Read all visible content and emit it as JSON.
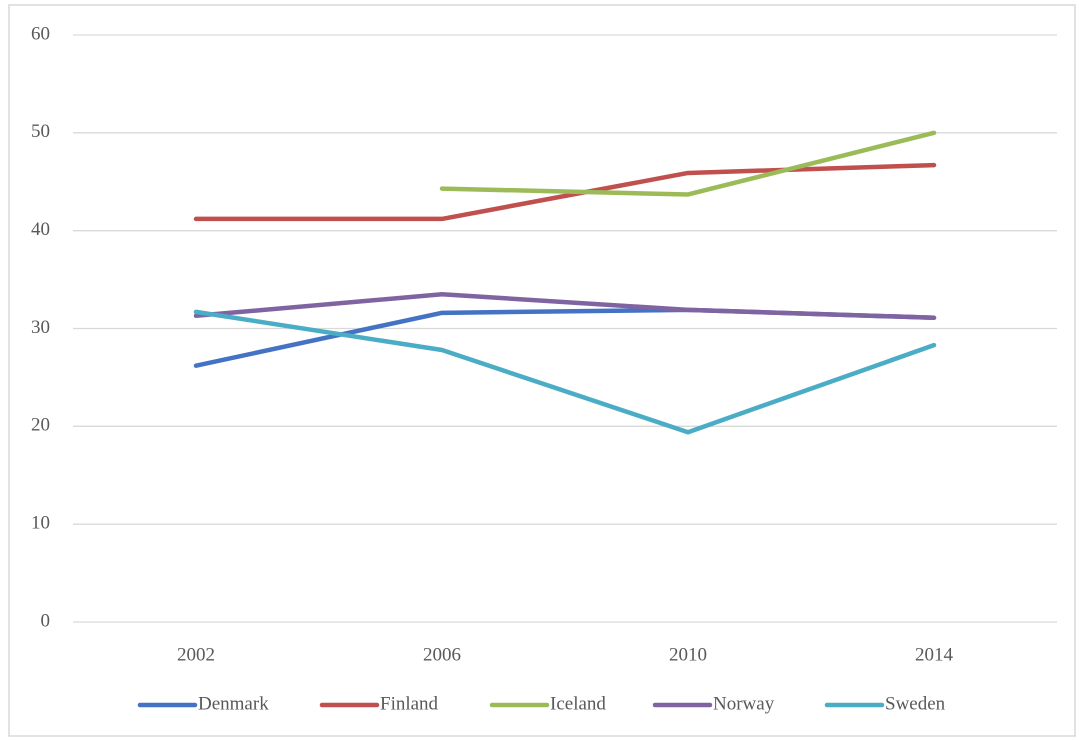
{
  "chart_data": {
    "type": "line",
    "categories": [
      "2002",
      "2006",
      "2010",
      "2014"
    ],
    "series": [
      {
        "name": "Denmark",
        "color": "#4472c4",
        "values": [
          26.2,
          31.6,
          31.9,
          31.1
        ]
      },
      {
        "name": "Finland",
        "color": "#c0504d",
        "values": [
          41.2,
          41.2,
          45.9,
          46.7
        ]
      },
      {
        "name": "Iceland",
        "color": "#9bbb59",
        "values": [
          null,
          44.3,
          43.7,
          50.0
        ]
      },
      {
        "name": "Norway",
        "color": "#8064a2",
        "values": [
          31.3,
          33.5,
          31.9,
          31.1
        ]
      },
      {
        "name": "Sweden",
        "color": "#4bacc6",
        "values": [
          31.7,
          27.8,
          19.4,
          28.3
        ]
      }
    ],
    "ylim": [
      0,
      60
    ],
    "yticks": [
      0,
      10,
      20,
      30,
      40,
      50,
      60
    ],
    "grid": true,
    "legend": "bottom"
  }
}
